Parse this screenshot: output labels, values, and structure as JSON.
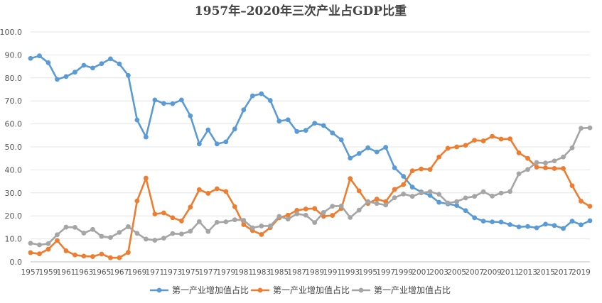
{
  "chart_data": {
    "type": "line",
    "title": "1957年–2020年三次产业占GDP比重",
    "xlabel": "",
    "ylabel": "",
    "ylim": [
      0,
      100
    ],
    "yticks": [
      "0.0",
      "10.0",
      "20.0",
      "30.0",
      "40.0",
      "50.0",
      "60.0",
      "70.0",
      "80.0",
      "90.0",
      "100.0"
    ],
    "x": [
      1957,
      1958,
      1959,
      1960,
      1961,
      1962,
      1963,
      1964,
      1965,
      1966,
      1967,
      1968,
      1969,
      1970,
      1971,
      1972,
      1973,
      1974,
      1975,
      1976,
      1977,
      1978,
      1979,
      1980,
      1981,
      1982,
      1983,
      1984,
      1985,
      1986,
      1987,
      1988,
      1989,
      1990,
      1991,
      1992,
      1993,
      1994,
      1995,
      1996,
      1997,
      1998,
      1999,
      2000,
      2001,
      2002,
      2003,
      2004,
      2005,
      2006,
      2007,
      2008,
      2009,
      2010,
      2011,
      2012,
      2013,
      2014,
      2015,
      2016,
      2017,
      2018,
      2019,
      2020
    ],
    "xtick_labels": [
      "1957",
      "1959",
      "1961",
      "1963",
      "1965",
      "1967",
      "1969",
      "1971",
      "1973",
      "1975",
      "1977",
      "1979",
      "1981",
      "1983",
      "1985",
      "1987",
      "1989",
      "1991",
      "1993",
      "1995",
      "1997",
      "1999",
      "2001",
      "2003",
      "2005",
      "2007",
      "2009",
      "2011",
      "2013",
      "2015",
      "2017",
      "2019"
    ],
    "legend_position": "bottom",
    "series": [
      {
        "name": "第一产业增加值占比",
        "color": "#5B9BD5",
        "values": [
          88.5,
          89.6,
          86.6,
          79.4,
          80.6,
          82.5,
          85.5,
          84.3,
          86.2,
          88.3,
          86.1,
          81.1,
          61.7,
          54.3,
          70.4,
          68.9,
          68.8,
          70.4,
          63.5,
          51.3,
          57.4,
          51.3,
          52.2,
          57.8,
          66.1,
          72.2,
          73.1,
          70.2,
          61.2,
          61.8,
          56.7,
          57.2,
          60.3,
          59.3,
          56.1,
          53.1,
          45.1,
          47.1,
          49.6,
          47.8,
          49.8,
          40.9,
          37.2,
          32.5,
          30.4,
          28.9,
          25.9,
          25.2,
          24.5,
          22.3,
          19.2,
          17.7,
          17.4,
          17.3,
          16.2,
          15.2,
          15.4,
          14.8,
          16.4,
          15.8,
          14.5,
          17.7,
          16.1,
          17.9
        ]
      },
      {
        "name": "第一产业增加值占比",
        "color": "#ED7D31",
        "values": [
          4.0,
          3.5,
          5.5,
          9.3,
          4.8,
          3.0,
          2.5,
          2.3,
          3.4,
          1.8,
          1.8,
          4.1,
          26.5,
          36.4,
          20.8,
          21.3,
          19.2,
          17.8,
          23.8,
          31.4,
          29.8,
          31.8,
          30.6,
          24.0,
          16.2,
          13.6,
          11.9,
          14.9,
          19.2,
          20.3,
          22.4,
          23.0,
          23.2,
          19.8,
          20.2,
          23.2,
          36.2,
          30.9,
          25.4,
          27.3,
          26.2,
          31.5,
          33.6,
          39.6,
          40.4,
          40.2,
          45.6,
          49.4,
          50.0,
          50.7,
          52.9,
          52.6,
          54.6,
          53.4,
          53.5,
          47.4,
          45.0,
          41.2,
          40.9,
          40.6,
          40.6,
          33.1,
          26.4,
          24.2
        ]
      },
      {
        "name": "第一产业增加值占比",
        "color": "#A5A5A5",
        "values": [
          8.1,
          7.4,
          7.9,
          11.8,
          15.1,
          15.0,
          12.5,
          14.1,
          11.1,
          10.6,
          12.8,
          15.3,
          12.4,
          9.9,
          9.4,
          10.3,
          12.3,
          12.1,
          13.3,
          17.5,
          13.2,
          17.2,
          17.4,
          18.3,
          18.1,
          14.8,
          15.6,
          15.6,
          19.8,
          18.6,
          20.9,
          20.3,
          17.1,
          21.5,
          24.2,
          24.3,
          19.3,
          22.5,
          26.2,
          25.4,
          24.7,
          27.9,
          29.5,
          28.5,
          30.0,
          30.5,
          29.4,
          25.6,
          26.2,
          27.8,
          28.5,
          30.5,
          28.6,
          29.9,
          30.6,
          38.3,
          40.2,
          43.2,
          43.0,
          43.9,
          45.6,
          49.6,
          58.1,
          58.3
        ]
      }
    ]
  }
}
